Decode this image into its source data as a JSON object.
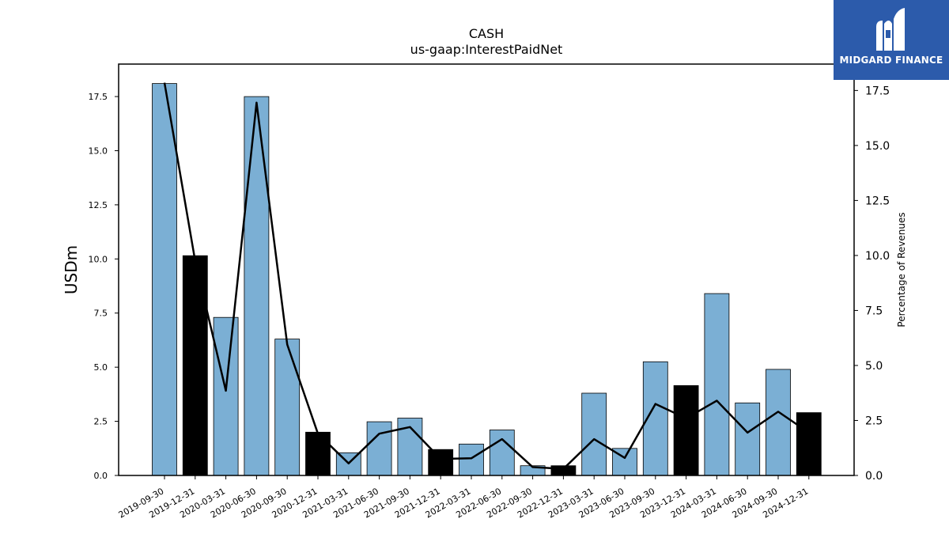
{
  "logo": {
    "text": "MIDGARD FINANCE"
  },
  "chart_data": {
    "type": "bar",
    "title": "CASH",
    "subtitle": "us-gaap:InterestPaidNet",
    "ylabel": "USDm",
    "y2label": "Percentage of Revenues",
    "ylim": [
      0,
      19.0
    ],
    "y2lim": [
      0,
      18.7
    ],
    "yticks": [
      "0.0",
      "2.5",
      "5.0",
      "7.5",
      "10.0",
      "12.5",
      "15.0",
      "17.5"
    ],
    "y2ticks": [
      "0.0",
      "2.5",
      "5.0",
      "7.5",
      "10.0",
      "12.5",
      "15.0",
      "17.5"
    ],
    "categories": [
      "2019-09-30",
      "2019-12-31",
      "2020-03-31",
      "2020-06-30",
      "2020-09-30",
      "2020-12-31",
      "2021-03-31",
      "2021-06-30",
      "2021-09-30",
      "2021-12-31",
      "2022-03-31",
      "2022-06-30",
      "2022-09-30",
      "2022-12-31",
      "2023-03-31",
      "2023-06-30",
      "2023-09-30",
      "2023-12-31",
      "2024-03-31",
      "2024-06-30",
      "2024-09-30",
      "2024-12-31"
    ],
    "series": [
      {
        "values": [
          18.1,
          10.15,
          7.3,
          17.5,
          6.3,
          2.0,
          1.05,
          2.48,
          2.65,
          1.2,
          1.45,
          2.1,
          0.45,
          0.45,
          3.8,
          1.25,
          5.25,
          4.15,
          8.4,
          3.35,
          4.9,
          2.9
        ],
        "highlight": [
          false,
          true,
          false,
          false,
          false,
          true,
          false,
          false,
          false,
          true,
          false,
          false,
          false,
          true,
          false,
          false,
          false,
          true,
          false,
          false,
          false,
          true
        ],
        "color": "#7bafd4",
        "highlight_color": "#000000"
      },
      {
        "type": "line",
        "axis": "right",
        "values": [
          17.85,
          9.75,
          3.85,
          16.95,
          5.95,
          1.9,
          0.55,
          1.9,
          2.2,
          0.75,
          0.78,
          1.65,
          0.38,
          0.3,
          1.65,
          0.8,
          3.25,
          2.6,
          3.4,
          1.95,
          2.9,
          1.95
        ],
        "color": "#000000"
      }
    ]
  }
}
